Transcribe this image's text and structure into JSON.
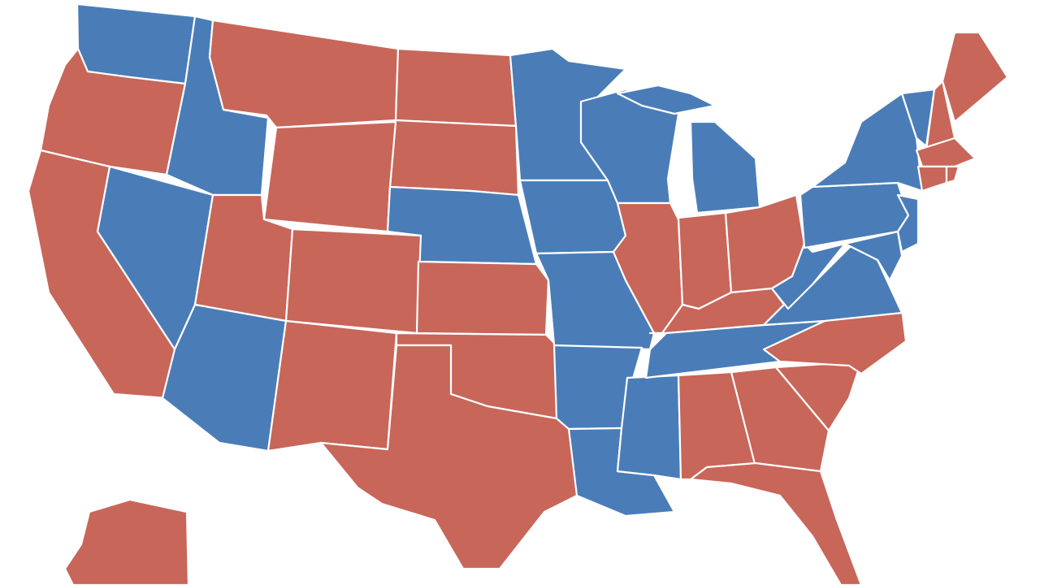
{
  "map": {
    "colors": [
      "#c8665a",
      "#4a7db8"
    ],
    "border": "#ffffff"
  }
}
